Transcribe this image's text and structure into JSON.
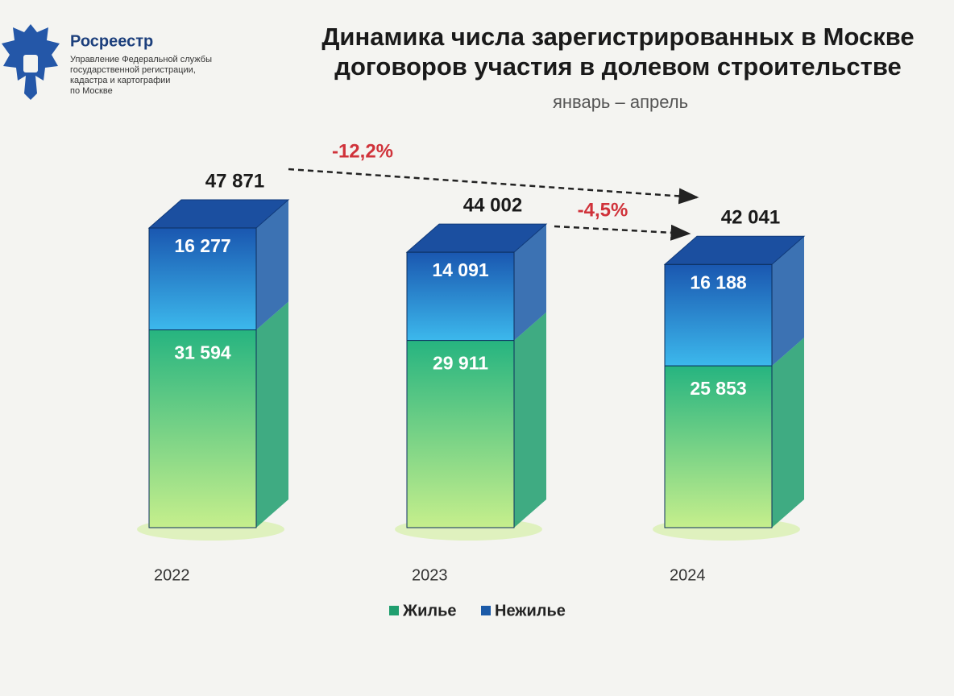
{
  "header": {
    "org": "Росреестр",
    "org_lines": [
      "Управление Федеральной службы",
      "государственной регистрации,",
      "кадастра и картографии",
      "по Москве"
    ]
  },
  "chart_data": {
    "type": "stacked-bar-3d",
    "title": [
      "Динамика числа зарегистрированных в Москве",
      "договоров участия в долевом строительстве"
    ],
    "subtitle": "январь – апрель",
    "categories": [
      "2022",
      "2023",
      "2024"
    ],
    "series": [
      {
        "name": "Жилье",
        "color": "#1f9e6e",
        "values": [
          31594,
          29911,
          25853
        ],
        "value_labels": [
          "31 594",
          "29 911",
          "25 853"
        ]
      },
      {
        "name": "Нежилье",
        "color": "#1b5aa8",
        "values": [
          16277,
          14091,
          16188
        ],
        "value_labels": [
          "16 277",
          "14 091",
          "16 188"
        ]
      }
    ],
    "totals": [
      47871,
      44002,
      42041
    ],
    "total_labels": [
      "47 871",
      "44 002",
      "42 041"
    ],
    "annotations": [
      {
        "text": "-12,2%"
      },
      {
        "text": "-4,5%"
      }
    ]
  }
}
